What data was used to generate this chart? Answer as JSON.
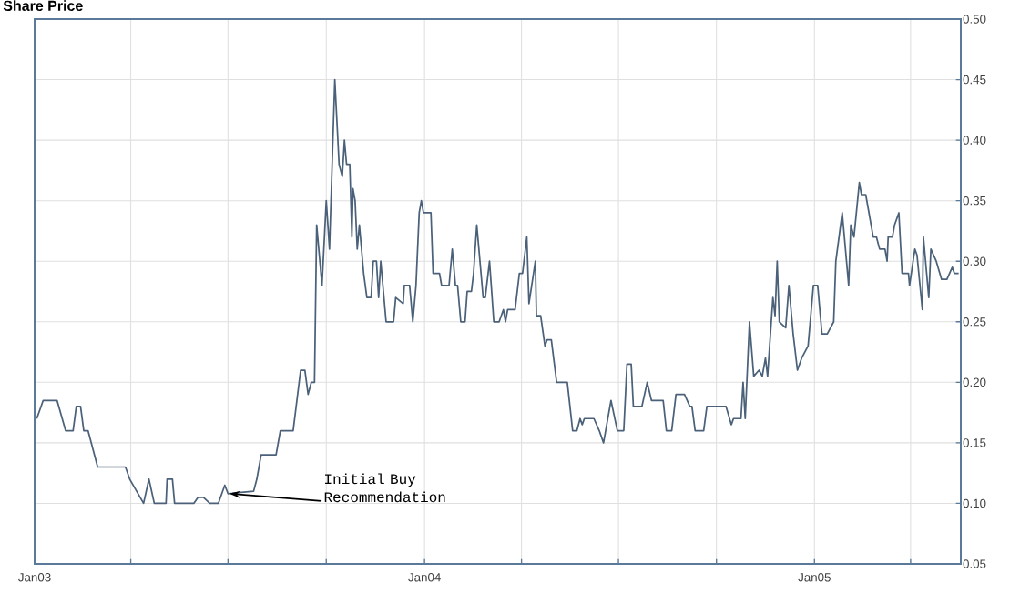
{
  "chart_data": {
    "type": "line",
    "title": "Share Price",
    "x": [
      "2003-01-03",
      "2003-01-09",
      "2003-01-22",
      "2003-01-30",
      "2003-02-06",
      "2003-02-09",
      "2003-02-13",
      "2003-02-16",
      "2003-02-20",
      "2003-03-01",
      "2003-03-27",
      "2003-03-31",
      "2003-04-13",
      "2003-04-18",
      "2003-04-23",
      "2003-05-04",
      "2003-05-05",
      "2003-05-10",
      "2003-05-12",
      "2003-05-30",
      "2003-06-03",
      "2003-06-08",
      "2003-06-14",
      "2003-06-22",
      "2003-06-28",
      "2003-07-01",
      "2003-07-25",
      "2003-07-28",
      "2003-08-01",
      "2003-08-15",
      "2003-08-19",
      "2003-08-31",
      "2003-09-07",
      "2003-09-11",
      "2003-09-14",
      "2003-09-17",
      "2003-09-20",
      "2003-09-22",
      "2003-09-27",
      "2003-10-01",
      "2003-10-04",
      "2003-10-09",
      "2003-10-13",
      "2003-10-16",
      "2003-10-18",
      "2003-10-20",
      "2003-10-23",
      "2003-10-25",
      "2003-10-26",
      "2003-10-28",
      "2003-10-30",
      "2003-11-01",
      "2003-11-05",
      "2003-11-08",
      "2003-11-12",
      "2003-11-14",
      "2003-11-17",
      "2003-11-19",
      "2003-11-21",
      "2003-11-26",
      "2003-12-03",
      "2003-12-05",
      "2003-12-12",
      "2003-12-13",
      "2003-12-18",
      "2003-12-21",
      "2003-12-24",
      "2003-12-27",
      "2003-12-29",
      "2003-12-31",
      "2004-01-07",
      "2004-01-09",
      "2004-01-15",
      "2004-01-17",
      "2004-01-24",
      "2004-01-27",
      "2004-01-30",
      "2004-02-01",
      "2004-02-04",
      "2004-02-08",
      "2004-02-10",
      "2004-02-14",
      "2004-02-16",
      "2004-02-19",
      "2004-02-25",
      "2004-02-27",
      "2004-03-02",
      "2004-03-06",
      "2004-03-11",
      "2004-03-15",
      "2004-03-17",
      "2004-03-19",
      "2004-03-26",
      "2004-03-30",
      "2004-04-02",
      "2004-04-06",
      "2004-04-08",
      "2004-04-14",
      "2004-04-15",
      "2004-04-19",
      "2004-04-23",
      "2004-04-25",
      "2004-04-29",
      "2004-05-04",
      "2004-05-14",
      "2004-05-19",
      "2004-05-23",
      "2004-05-26",
      "2004-05-28",
      "2004-05-30",
      "2004-06-08",
      "2004-06-13",
      "2004-06-17",
      "2004-06-24",
      "2004-06-30",
      "2004-07-06",
      "2004-07-09",
      "2004-07-13",
      "2004-07-15",
      "2004-07-23",
      "2004-07-28",
      "2004-08-01",
      "2004-08-12",
      "2004-08-15",
      "2004-08-20",
      "2004-08-24",
      "2004-09-01",
      "2004-09-06",
      "2004-09-08",
      "2004-09-11",
      "2004-09-19",
      "2004-09-22",
      "2004-10-10",
      "2004-10-15",
      "2004-10-17",
      "2004-10-24",
      "2004-10-26",
      "2004-10-28",
      "2004-11-01",
      "2004-11-05",
      "2004-11-10",
      "2004-11-13",
      "2004-11-16",
      "2004-11-18",
      "2004-11-23",
      "2004-11-25",
      "2004-11-27",
      "2004-11-29",
      "2004-12-05",
      "2004-12-08",
      "2004-12-12",
      "2004-12-16",
      "2004-12-20",
      "2004-12-26",
      "2004-12-31",
      "2005-01-04",
      "2005-01-08",
      "2005-01-13",
      "2005-01-19",
      "2005-01-21",
      "2005-01-27",
      "2005-02-02",
      "2005-02-04",
      "2005-02-07",
      "2005-02-12",
      "2005-02-14",
      "2005-02-18",
      "2005-02-25",
      "2005-02-28",
      "2005-03-03",
      "2005-03-08",
      "2005-03-10",
      "2005-03-11",
      "2005-03-15",
      "2005-03-17",
      "2005-03-21",
      "2005-03-24",
      "2005-03-30",
      "2005-03-31",
      "2005-04-05",
      "2005-04-07",
      "2005-04-12",
      "2005-04-13",
      "2005-04-18",
      "2005-04-20",
      "2005-04-25",
      "2005-04-30",
      "2005-05-05",
      "2005-05-10",
      "2005-05-12",
      "2005-05-16"
    ],
    "values": [
      0.17,
      0.185,
      0.185,
      0.16,
      0.16,
      0.18,
      0.18,
      0.16,
      0.16,
      0.13,
      0.13,
      0.12,
      0.1,
      0.12,
      0.1,
      0.1,
      0.12,
      0.12,
      0.1,
      0.1,
      0.105,
      0.105,
      0.1,
      0.1,
      0.115,
      0.108,
      0.11,
      0.12,
      0.14,
      0.14,
      0.16,
      0.16,
      0.21,
      0.21,
      0.19,
      0.2,
      0.2,
      0.33,
      0.28,
      0.35,
      0.31,
      0.45,
      0.38,
      0.37,
      0.4,
      0.38,
      0.38,
      0.32,
      0.36,
      0.35,
      0.31,
      0.33,
      0.29,
      0.27,
      0.27,
      0.3,
      0.3,
      0.27,
      0.3,
      0.25,
      0.25,
      0.27,
      0.265,
      0.28,
      0.28,
      0.25,
      0.28,
      0.34,
      0.35,
      0.34,
      0.34,
      0.29,
      0.29,
      0.28,
      0.28,
      0.31,
      0.28,
      0.28,
      0.25,
      0.25,
      0.275,
      0.275,
      0.29,
      0.33,
      0.27,
      0.27,
      0.3,
      0.25,
      0.25,
      0.26,
      0.25,
      0.26,
      0.26,
      0.29,
      0.29,
      0.32,
      0.265,
      0.3,
      0.255,
      0.255,
      0.23,
      0.235,
      0.235,
      0.2,
      0.2,
      0.16,
      0.16,
      0.17,
      0.165,
      0.17,
      0.17,
      0.16,
      0.15,
      0.185,
      0.16,
      0.16,
      0.215,
      0.215,
      0.18,
      0.18,
      0.2,
      0.185,
      0.185,
      0.16,
      0.16,
      0.19,
      0.19,
      0.18,
      0.18,
      0.16,
      0.16,
      0.18,
      0.18,
      0.165,
      0.17,
      0.17,
      0.2,
      0.17,
      0.25,
      0.205,
      0.21,
      0.205,
      0.22,
      0.205,
      0.27,
      0.255,
      0.3,
      0.25,
      0.245,
      0.28,
      0.24,
      0.21,
      0.22,
      0.23,
      0.28,
      0.28,
      0.24,
      0.24,
      0.25,
      0.3,
      0.34,
      0.28,
      0.33,
      0.32,
      0.365,
      0.355,
      0.355,
      0.32,
      0.32,
      0.31,
      0.31,
      0.3,
      0.32,
      0.32,
      0.33,
      0.34,
      0.29,
      0.29,
      0.28,
      0.31,
      0.305,
      0.26,
      0.32,
      0.27,
      0.31,
      0.3,
      0.285,
      0.285,
      0.295,
      0.29,
      0.29
    ],
    "color": "#4a6179",
    "xlim": [
      "2003-01-01",
      "2005-05-18"
    ],
    "ylim": [
      0.05,
      0.5
    ],
    "xticks": [
      {
        "value": "2003-01-01",
        "label": "Jan03"
      },
      {
        "value": "2003-04-01",
        "label": null
      },
      {
        "value": "2003-07-01",
        "label": null
      },
      {
        "value": "2003-10-01",
        "label": null
      },
      {
        "value": "2004-01-01",
        "label": "Jan04"
      },
      {
        "value": "2004-04-01",
        "label": null
      },
      {
        "value": "2004-07-01",
        "label": null
      },
      {
        "value": "2004-10-01",
        "label": null
      },
      {
        "value": "2005-01-01",
        "label": "Jan05"
      },
      {
        "value": "2005-04-01",
        "label": null
      }
    ],
    "yticks": [
      {
        "value": 0.05,
        "label": "0.05"
      },
      {
        "value": 0.1,
        "label": "0.10"
      },
      {
        "value": 0.15,
        "label": "0.15"
      },
      {
        "value": 0.2,
        "label": "0.20"
      },
      {
        "value": 0.25,
        "label": "0.25"
      },
      {
        "value": 0.3,
        "label": "0.30"
      },
      {
        "value": 0.35,
        "label": "0.35"
      },
      {
        "value": 0.4,
        "label": "0.40"
      },
      {
        "value": 0.45,
        "label": "0.45"
      },
      {
        "value": 0.5,
        "label": "0.50"
      }
    ],
    "grid": true,
    "annotations": [
      {
        "text": "Initial Buy Recommendation",
        "x": "2003-07-01",
        "y": 0.108
      }
    ]
  }
}
